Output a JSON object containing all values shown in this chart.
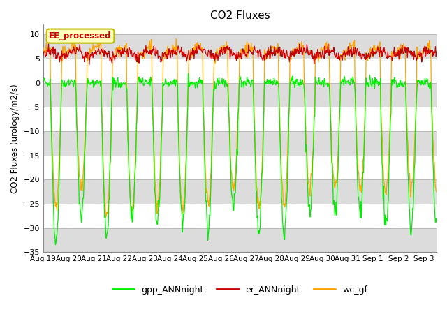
{
  "title": "CO2 Fluxes",
  "ylabel": "CO2 Fluxes (urology/m2/s)",
  "ylim": [
    -35,
    12
  ],
  "yticks": [
    -35,
    -30,
    -25,
    -20,
    -15,
    -10,
    -5,
    0,
    5,
    10
  ],
  "n_days": 15.5,
  "colors": {
    "gpp": "#00EE00",
    "er": "#CC0000",
    "wc": "#FFA500",
    "ee_box_face": "#FFFFBB",
    "ee_box_edge": "#BBBB00",
    "ee_text": "#CC0000",
    "bg_white": "#FFFFFF",
    "bg_gray": "#DCDCDC"
  },
  "legend": {
    "gpp_label": "gpp_ANNnight",
    "er_label": "er_ANNnight",
    "wc_label": "wc_gf"
  },
  "ee_label": "EE_processed",
  "x_labels": [
    "Aug 19",
    "Aug 20",
    "Aug 21",
    "Aug 22",
    "Aug 23",
    "Aug 24",
    "Aug 25",
    "Aug 26",
    "Aug 27",
    "Aug 28",
    "Aug 29",
    "Aug 30",
    "Aug 31",
    "Sep 1",
    "Sep 2",
    "Sep 3"
  ],
  "seed": 42
}
